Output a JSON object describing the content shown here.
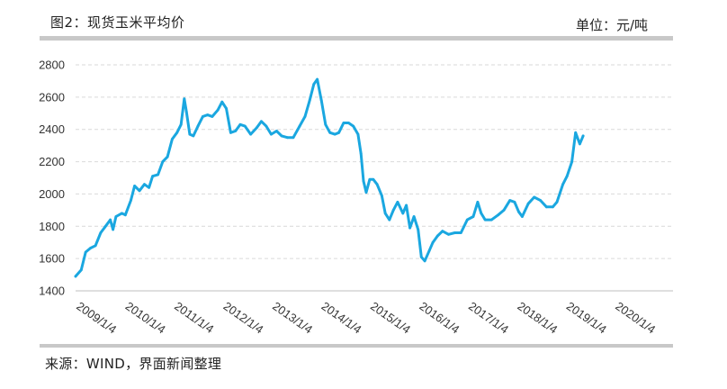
{
  "header": {
    "title": "图2：现货玉米平均价",
    "unit": "单位：元/吨"
  },
  "footer": {
    "source": "来源：WIND，界面新闻整理"
  },
  "colors": {
    "series": "#1aa7e0",
    "grid": "#d9d9d9",
    "rule": "#c8c8c8"
  },
  "chart_data": {
    "type": "line",
    "title": "图2：现货玉米平均价",
    "xlabel": "",
    "ylabel": "单位：元/吨",
    "ylim": [
      1400,
      2800
    ],
    "yticks": [
      1400,
      1600,
      1800,
      2000,
      2200,
      2400,
      2600,
      2800
    ],
    "xlim": [
      "2009-01-04",
      "2021-03-15"
    ],
    "xticks": [
      "2009/1/4",
      "2010/1/4",
      "2011/1/4",
      "2012/1/4",
      "2013/1/4",
      "2014/1/4",
      "2015/1/4",
      "2016/1/4",
      "2017/1/4",
      "2018/1/4",
      "2019/1/4",
      "2020/1/4"
    ],
    "grid": true,
    "grid_style": "dashed horizontal",
    "legend": "none",
    "series": [
      {
        "values": [
          [
            "2009-01-04",
            1490
          ],
          [
            "2009-02-15",
            1530
          ],
          [
            "2009-03-20",
            1640
          ],
          [
            "2009-04-25",
            1665
          ],
          [
            "2009-06-01",
            1680
          ],
          [
            "2009-07-10",
            1760
          ],
          [
            "2009-08-15",
            1800
          ],
          [
            "2009-09-20",
            1840
          ],
          [
            "2009-10-10",
            1780
          ],
          [
            "2009-11-01",
            1860
          ],
          [
            "2009-12-15",
            1880
          ],
          [
            "2010-01-10",
            1870
          ],
          [
            "2010-02-20",
            1960
          ],
          [
            "2010-03-20",
            2050
          ],
          [
            "2010-04-25",
            2020
          ],
          [
            "2010-06-01",
            2060
          ],
          [
            "2010-07-05",
            2040
          ],
          [
            "2010-08-01",
            2110
          ],
          [
            "2010-09-10",
            2120
          ],
          [
            "2010-10-15",
            2200
          ],
          [
            "2010-11-20",
            2230
          ],
          [
            "2010-12-25",
            2340
          ],
          [
            "2011-01-30",
            2380
          ],
          [
            "2011-03-01",
            2430
          ],
          [
            "2011-03-25",
            2590
          ],
          [
            "2011-04-10",
            2510
          ],
          [
            "2011-05-05",
            2370
          ],
          [
            "2011-06-01",
            2360
          ],
          [
            "2011-07-05",
            2420
          ],
          [
            "2011-08-10",
            2480
          ],
          [
            "2011-09-15",
            2490
          ],
          [
            "2011-10-20",
            2480
          ],
          [
            "2011-11-30",
            2520
          ],
          [
            "2012-01-01",
            2570
          ],
          [
            "2012-02-01",
            2530
          ],
          [
            "2012-03-05",
            2380
          ],
          [
            "2012-04-10",
            2390
          ],
          [
            "2012-05-15",
            2430
          ],
          [
            "2012-06-20",
            2420
          ],
          [
            "2012-08-01",
            2370
          ],
          [
            "2012-09-15",
            2410
          ],
          [
            "2012-10-20",
            2450
          ],
          [
            "2012-11-25",
            2420
          ],
          [
            "2013-01-01",
            2370
          ],
          [
            "2013-02-10",
            2390
          ],
          [
            "2013-03-20",
            2360
          ],
          [
            "2013-05-01",
            2350
          ],
          [
            "2013-06-15",
            2350
          ],
          [
            "2013-08-01",
            2420
          ],
          [
            "2013-09-10",
            2480
          ],
          [
            "2013-10-15",
            2580
          ],
          [
            "2013-11-15",
            2680
          ],
          [
            "2013-12-10",
            2710
          ],
          [
            "2014-01-10",
            2580
          ],
          [
            "2014-02-10",
            2430
          ],
          [
            "2014-03-15",
            2380
          ],
          [
            "2014-04-20",
            2370
          ],
          [
            "2014-05-20",
            2380
          ],
          [
            "2014-06-25",
            2440
          ],
          [
            "2014-08-01",
            2440
          ],
          [
            "2014-09-05",
            2420
          ],
          [
            "2014-10-10",
            2370
          ],
          [
            "2014-11-01",
            2250
          ],
          [
            "2014-11-20",
            2080
          ],
          [
            "2014-12-10",
            2010
          ],
          [
            "2015-01-05",
            2090
          ],
          [
            "2015-02-01",
            2090
          ],
          [
            "2015-03-01",
            2060
          ],
          [
            "2015-04-05",
            1990
          ],
          [
            "2015-05-01",
            1880
          ],
          [
            "2015-06-01",
            1840
          ],
          [
            "2015-07-01",
            1900
          ],
          [
            "2015-08-01",
            1950
          ],
          [
            "2015-09-10",
            1880
          ],
          [
            "2015-10-05",
            1930
          ],
          [
            "2015-11-01",
            1790
          ],
          [
            "2015-12-01",
            1860
          ],
          [
            "2016-01-01",
            1780
          ],
          [
            "2016-01-25",
            1610
          ],
          [
            "2016-02-20",
            1585
          ],
          [
            "2016-03-25",
            1650
          ],
          [
            "2016-04-20",
            1700
          ],
          [
            "2016-05-25",
            1740
          ],
          [
            "2016-07-01",
            1770
          ],
          [
            "2016-08-15",
            1750
          ],
          [
            "2016-10-01",
            1760
          ],
          [
            "2016-11-15",
            1760
          ],
          [
            "2017-01-01",
            1840
          ],
          [
            "2017-02-15",
            1860
          ],
          [
            "2017-03-20",
            1950
          ],
          [
            "2017-04-15",
            1880
          ],
          [
            "2017-05-15",
            1840
          ],
          [
            "2017-07-01",
            1840
          ],
          [
            "2017-08-20",
            1870
          ],
          [
            "2017-10-01",
            1900
          ],
          [
            "2017-11-15",
            1960
          ],
          [
            "2017-12-20",
            1950
          ],
          [
            "2018-01-20",
            1890
          ],
          [
            "2018-02-15",
            1860
          ],
          [
            "2018-04-01",
            1940
          ],
          [
            "2018-05-15",
            1980
          ],
          [
            "2018-07-01",
            1960
          ],
          [
            "2018-08-15",
            1920
          ],
          [
            "2018-10-01",
            1920
          ],
          [
            "2018-11-01",
            1950
          ],
          [
            "2018-12-15",
            2060
          ],
          [
            "2019-01-15",
            2110
          ],
          [
            "2019-02-20",
            2200
          ],
          [
            "2019-03-20",
            2380
          ],
          [
            "2019-04-20",
            2310
          ],
          [
            "2019-05-15",
            2360
          ]
        ]
      }
    ]
  }
}
